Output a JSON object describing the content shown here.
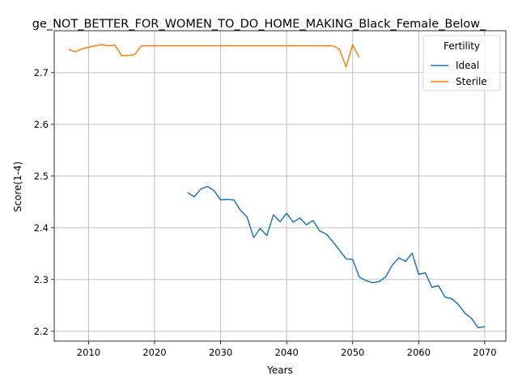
{
  "chart_data": {
    "type": "line",
    "title": "ge_NOT_BETTER_FOR_WOMEN_TO_DO_HOME_MAKING_Black_Female_Below_",
    "xlabel": "Years",
    "ylabel": "Score(1-4)",
    "xlim": [
      2004.8,
      2073.2
    ],
    "ylim": [
      2.181,
      2.781
    ],
    "xticks": [
      2010,
      2020,
      2030,
      2040,
      2050,
      2060,
      2070
    ],
    "yticks": [
      2.2,
      2.3,
      2.4,
      2.5,
      2.6,
      2.7
    ],
    "xtick_labels": [
      "2010",
      "2020",
      "2030",
      "2040",
      "2050",
      "2060",
      "2070"
    ],
    "ytick_labels": [
      "2.2",
      "2.3",
      "2.4",
      "2.5",
      "2.6",
      "2.7"
    ],
    "grid": true,
    "legend": {
      "title": "Fertility",
      "placement": "top-right"
    },
    "series": [
      {
        "name": "Ideal",
        "color": "#1f77b4",
        "x": [
          2025,
          2026,
          2027,
          2028,
          2029,
          2030,
          2031,
          2032,
          2033,
          2034,
          2035,
          2036,
          2037,
          2038,
          2039,
          2040,
          2041,
          2042,
          2043,
          2044,
          2045,
          2046,
          2047,
          2048,
          2049,
          2050,
          2051,
          2052,
          2053,
          2054,
          2055,
          2056,
          2057,
          2058,
          2059,
          2060,
          2061,
          2062,
          2063,
          2064,
          2065,
          2066,
          2067,
          2068,
          2069,
          2070
        ],
        "y": [
          2.468,
          2.46,
          2.475,
          2.48,
          2.472,
          2.454,
          2.455,
          2.454,
          2.434,
          2.421,
          2.381,
          2.399,
          2.385,
          2.425,
          2.412,
          2.428,
          2.411,
          2.419,
          2.406,
          2.414,
          2.394,
          2.388,
          2.373,
          2.357,
          2.34,
          2.339,
          2.305,
          2.298,
          2.294,
          2.296,
          2.305,
          2.328,
          2.342,
          2.335,
          2.351,
          2.31,
          2.313,
          2.285,
          2.288,
          2.266,
          2.263,
          2.252,
          2.235,
          2.225,
          2.207,
          2.209
        ]
      },
      {
        "name": "Sterile",
        "color": "#ff7f0e",
        "x": [
          2007,
          2008,
          2009,
          2010,
          2011,
          2012,
          2013,
          2014,
          2015,
          2016,
          2017,
          2018,
          2019,
          2020,
          2021,
          2022,
          2023,
          2024,
          2025,
          2026,
          2027,
          2028,
          2029,
          2030,
          2031,
          2032,
          2033,
          2034,
          2035,
          2036,
          2037,
          2038,
          2039,
          2040,
          2041,
          2042,
          2043,
          2044,
          2045,
          2046,
          2047,
          2048,
          2049,
          2050,
          2051
        ],
        "y": [
          2.745,
          2.74,
          2.746,
          2.749,
          2.752,
          2.754,
          2.752,
          2.753,
          2.733,
          2.733,
          2.735,
          2.752,
          2.752,
          2.752,
          2.752,
          2.752,
          2.752,
          2.752,
          2.752,
          2.752,
          2.752,
          2.752,
          2.752,
          2.752,
          2.752,
          2.752,
          2.752,
          2.752,
          2.752,
          2.752,
          2.752,
          2.752,
          2.752,
          2.752,
          2.752,
          2.752,
          2.752,
          2.752,
          2.752,
          2.752,
          2.752,
          2.745,
          2.711,
          2.754,
          2.729
        ]
      }
    ]
  }
}
